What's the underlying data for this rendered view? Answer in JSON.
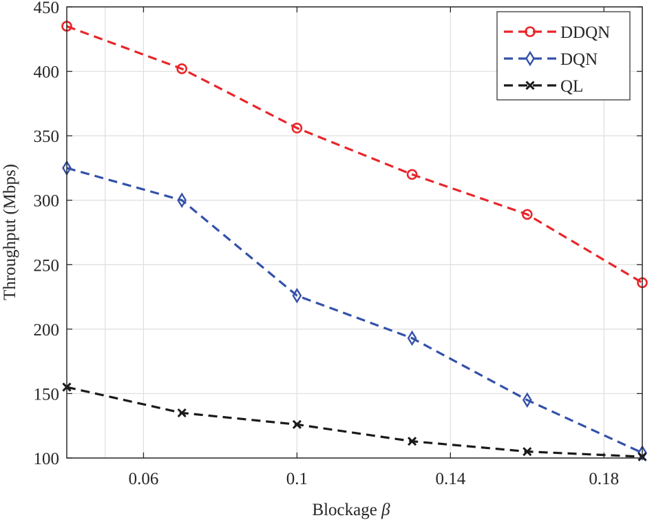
{
  "chart_data": {
    "type": "line",
    "title": "",
    "xlabel": "Blockage",
    "xlabel_symbol": "β",
    "ylabel": "Throughput (Mbps)",
    "xlim": [
      0.04,
      0.19
    ],
    "ylim": [
      100,
      450
    ],
    "xticks": [
      0.06,
      0.1,
      0.14,
      0.18
    ],
    "xtick_labels": [
      "0.06",
      "0.1",
      "0.14",
      "0.18"
    ],
    "yticks": [
      100,
      150,
      200,
      250,
      300,
      350,
      400,
      450
    ],
    "ytick_labels": [
      "100",
      "150",
      "200",
      "250",
      "300",
      "350",
      "400",
      "450"
    ],
    "x_grid_extra": [
      0.05
    ],
    "grid": true,
    "legend_position": "top-right",
    "x": [
      0.04,
      0.07,
      0.1,
      0.13,
      0.16,
      0.19
    ],
    "series": [
      {
        "name": "DDQN",
        "color": "#e8262a",
        "marker": "circle",
        "values": [
          435,
          402,
          356,
          320,
          289,
          236
        ]
      },
      {
        "name": "DQN",
        "color": "#3351a9",
        "marker": "diamond",
        "values": [
          325,
          300,
          226,
          193,
          145,
          104
        ]
      },
      {
        "name": "QL",
        "color": "#1a1a1a",
        "marker": "x",
        "values": [
          155,
          135,
          126,
          113,
          105,
          101
        ]
      }
    ]
  }
}
